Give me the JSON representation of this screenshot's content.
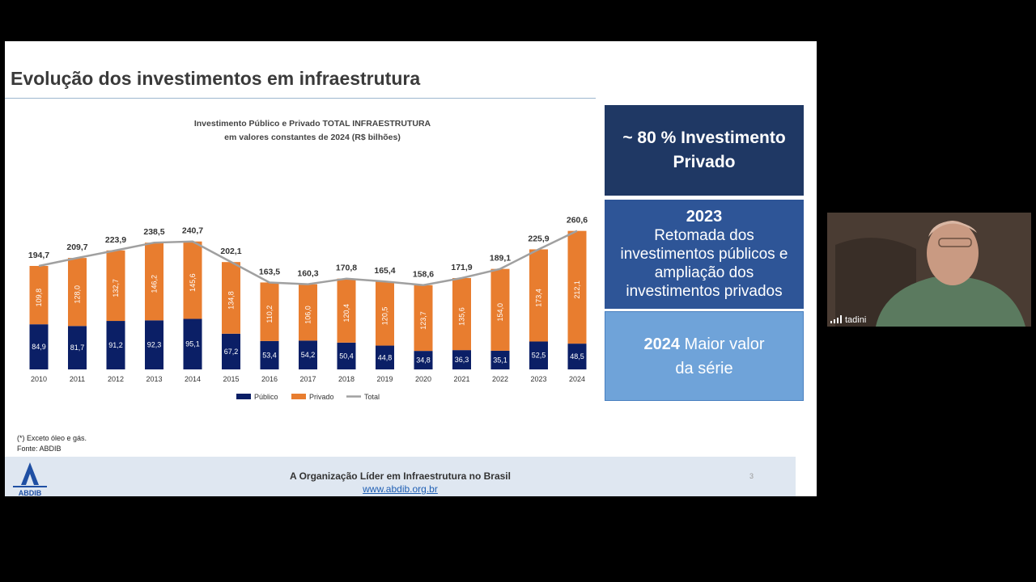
{
  "slide": {
    "title": "Evolução dos investimentos em infraestrutura",
    "footnote_line1": "(*) Exceto óleo e gás.",
    "footnote_line2": "Fonte: ABDIB",
    "footer_text": "A Organização Líder em Infraestrutura no Brasil",
    "footer_link": "www.abdib.org.br",
    "page_number": "3",
    "logo_text": "ABDIB"
  },
  "boxes": {
    "box1": "~ 80 % Investimento Privado",
    "box2_year": "2023",
    "box2_text": "Retomada  dos investimentos públicos e ampliação dos investimentos privados",
    "box3_bold": "2024",
    "box3_text": " Maior valor da série"
  },
  "participant": {
    "name": "tadini"
  },
  "colors": {
    "publico": "#0b1f66",
    "privado": "#e87d2f",
    "total": "#a0a0a0",
    "box1": "#1f3864",
    "box2": "#2e5597",
    "box3": "#6fa3d9"
  },
  "chart_data": {
    "type": "bar",
    "stacked": true,
    "title": "Investimento Público e Privado TOTAL INFRAESTRUTURA",
    "subtitle": "em valores constantes de 2024 (R$ bilhões)",
    "categories": [
      "2010",
      "2011",
      "2012",
      "2013",
      "2014",
      "2015",
      "2016",
      "2017",
      "2018",
      "2019",
      "2020",
      "2021",
      "2022",
      "2023",
      "2024"
    ],
    "series": [
      {
        "name": "Público",
        "values": [
          84.9,
          81.7,
          91.2,
          92.3,
          95.1,
          67.2,
          53.4,
          54.2,
          50.4,
          44.8,
          34.8,
          36.3,
          35.1,
          52.5,
          48.5
        ],
        "labels": [
          "84,9",
          "81,7",
          "91,2",
          "92,3",
          "95,1",
          "67,2",
          "53,4",
          "54,2",
          "50,4",
          "44,8",
          "34,8",
          "36,3",
          "35,1",
          "52,5",
          "48,5"
        ]
      },
      {
        "name": "Privado",
        "values": [
          109.8,
          128.0,
          132.7,
          146.2,
          145.6,
          134.8,
          110.2,
          106.0,
          120.4,
          120.5,
          123.7,
          135.6,
          154.0,
          173.4,
          212.1
        ],
        "labels": [
          "109,8",
          "128,0",
          "132,7",
          "146,2",
          "145,6",
          "134,8",
          "110,2",
          "106,0",
          "120,4",
          "120,5",
          "123,7",
          "135,6",
          "154,0",
          "173,4",
          "212,1"
        ]
      },
      {
        "name": "Total",
        "type": "line",
        "values": [
          194.7,
          209.7,
          223.9,
          238.5,
          240.7,
          202.1,
          163.5,
          160.3,
          170.8,
          165.4,
          158.6,
          171.9,
          189.1,
          225.9,
          260.6
        ],
        "labels": [
          "194,7",
          "209,7",
          "223,9",
          "238,5",
          "240,7",
          "202,1",
          "163,5",
          "160,3",
          "170,8",
          "165,4",
          "158,6",
          "171,9",
          "189,1",
          "225,9",
          "260,6"
        ]
      }
    ],
    "legend": "bottom",
    "grid": false
  }
}
